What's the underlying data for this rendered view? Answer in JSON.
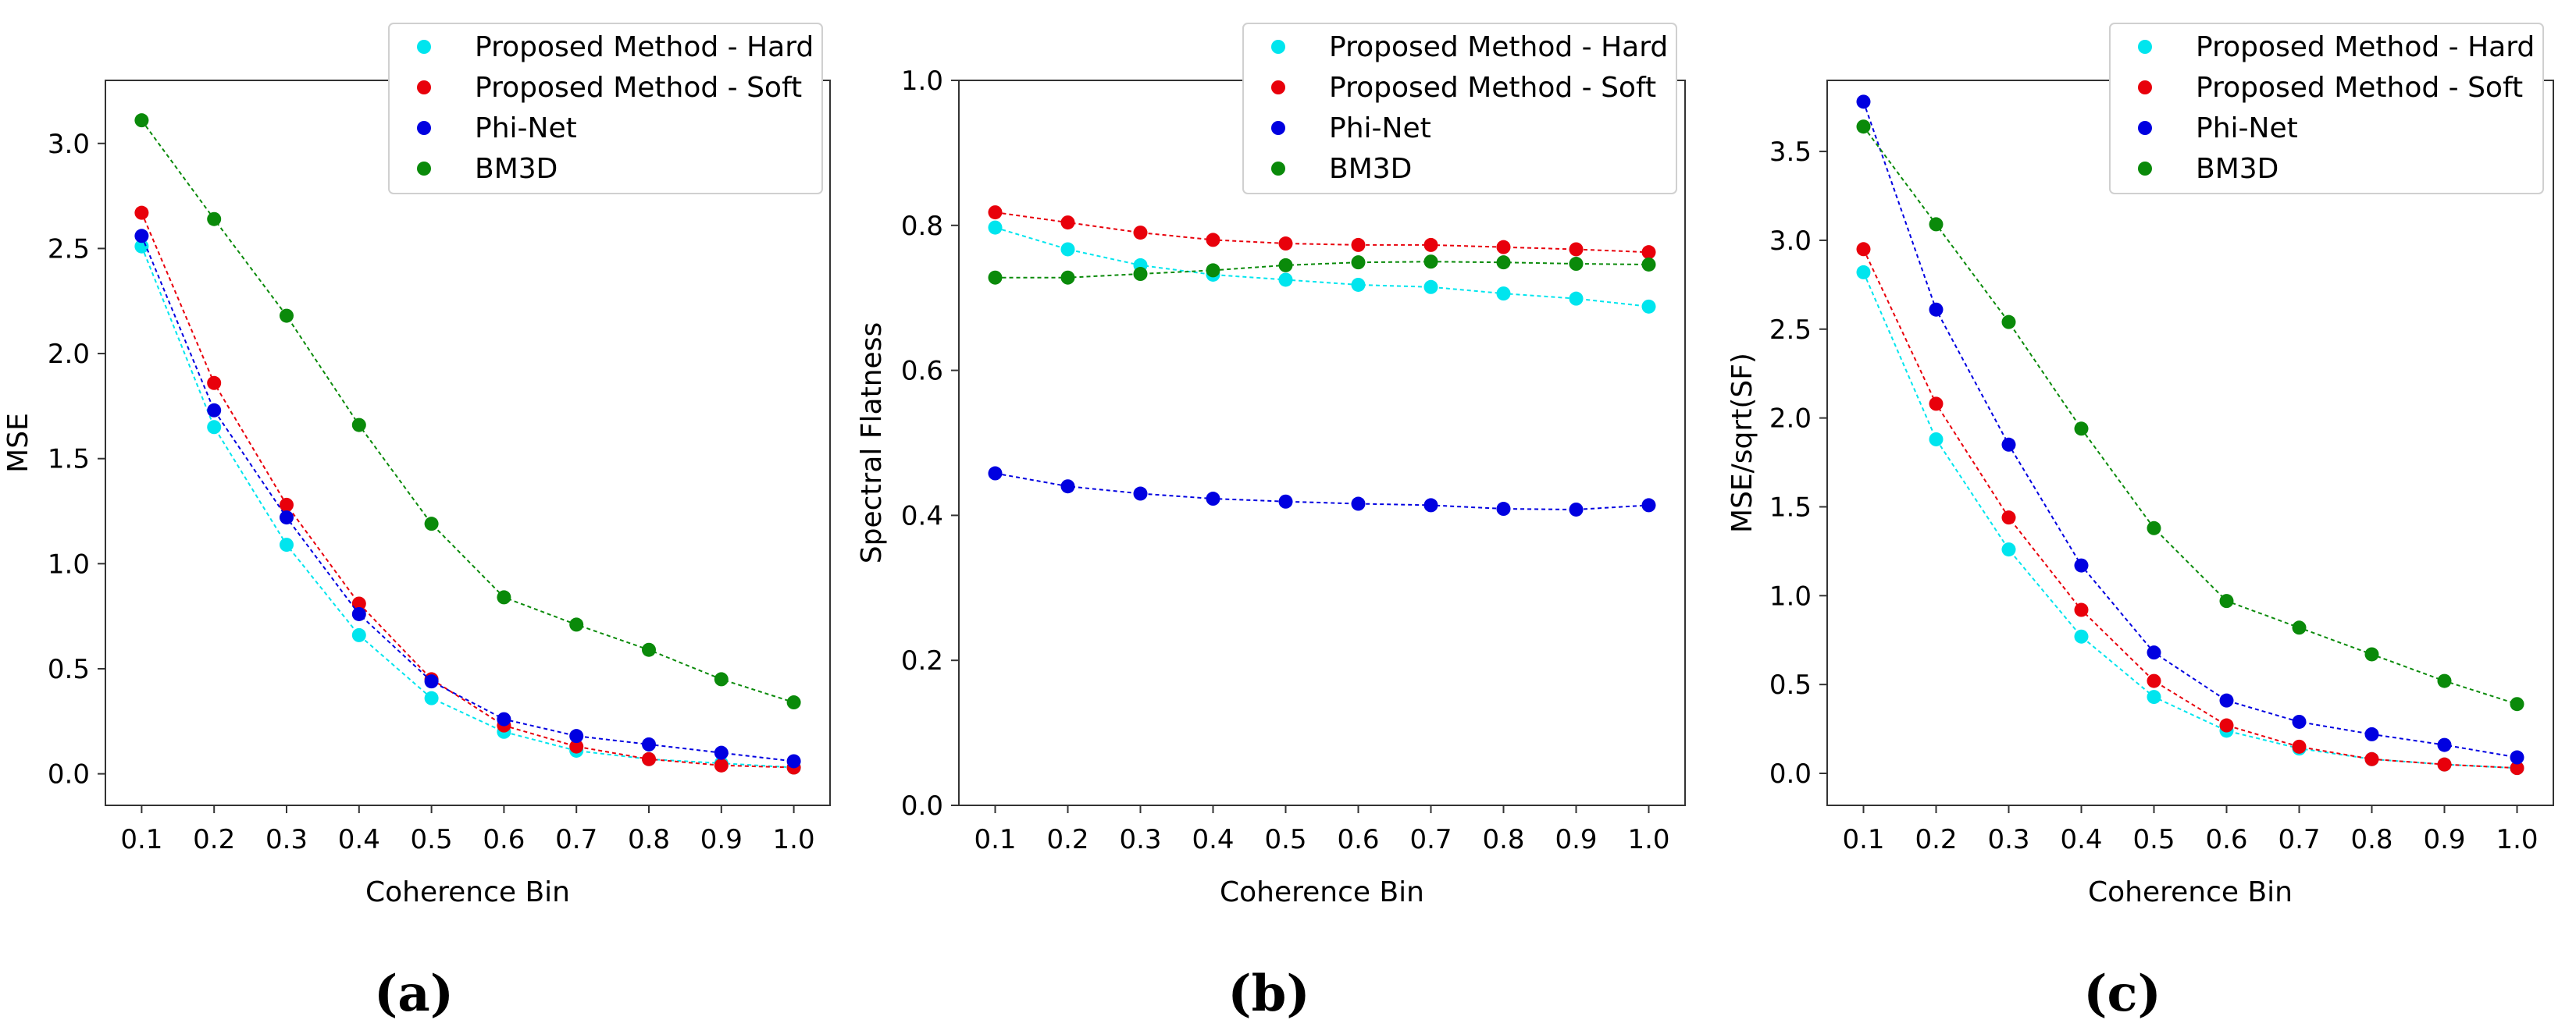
{
  "figure": {
    "panel_labels": [
      "(a)",
      "(b)",
      "(c)"
    ]
  },
  "colors": {
    "Proposed Method - Hard": "#00e5ee",
    "Proposed Method - Soft": "#e8000b",
    "Phi-Net": "#0000e0",
    "BM3D": "#0a8a0a"
  },
  "chart_data": [
    {
      "type": "line",
      "xlabel": "Coherence Bin",
      "ylabel": "MSE",
      "xlim": [
        0.05,
        1.05
      ],
      "ylim": [
        -0.15,
        3.3
      ],
      "xticks": [
        0.1,
        0.2,
        0.3,
        0.4,
        0.5,
        0.6,
        0.7,
        0.8,
        0.9,
        1.0
      ],
      "xtick_labels": [
        "0.1",
        "0.2",
        "0.3",
        "0.4",
        "0.5",
        "0.6",
        "0.7",
        "0.8",
        "0.9",
        "1.0"
      ],
      "yticks": [
        0.0,
        0.5,
        1.0,
        1.5,
        2.0,
        2.5,
        3.0
      ],
      "ytick_labels": [
        "0.0",
        "0.5",
        "1.0",
        "1.5",
        "2.0",
        "2.5",
        "3.0"
      ],
      "legend_position": "top-right",
      "grid": false,
      "x": [
        0.1,
        0.2,
        0.3,
        0.4,
        0.5,
        0.6,
        0.7,
        0.8,
        0.9,
        1.0
      ],
      "series": [
        {
          "name": "Proposed Method - Hard",
          "values": [
            2.51,
            1.65,
            1.09,
            0.66,
            0.36,
            0.2,
            0.11,
            0.07,
            0.05,
            0.03
          ]
        },
        {
          "name": "Proposed Method - Soft",
          "values": [
            2.67,
            1.86,
            1.28,
            0.81,
            0.45,
            0.23,
            0.13,
            0.07,
            0.04,
            0.03
          ]
        },
        {
          "name": "Phi-Net",
          "values": [
            2.56,
            1.73,
            1.22,
            0.76,
            0.44,
            0.26,
            0.18,
            0.14,
            0.1,
            0.06
          ]
        },
        {
          "name": "BM3D",
          "values": [
            3.11,
            2.64,
            2.18,
            1.66,
            1.19,
            0.84,
            0.71,
            0.59,
            0.45,
            0.34
          ]
        }
      ]
    },
    {
      "type": "line",
      "xlabel": "Coherence Bin",
      "ylabel": "Spectral Flatness",
      "xlim": [
        0.05,
        1.05
      ],
      "ylim": [
        0.0,
        1.0
      ],
      "xticks": [
        0.1,
        0.2,
        0.3,
        0.4,
        0.5,
        0.6,
        0.7,
        0.8,
        0.9,
        1.0
      ],
      "xtick_labels": [
        "0.1",
        "0.2",
        "0.3",
        "0.4",
        "0.5",
        "0.6",
        "0.7",
        "0.8",
        "0.9",
        "1.0"
      ],
      "yticks": [
        0.0,
        0.2,
        0.4,
        0.6,
        0.8,
        1.0
      ],
      "ytick_labels": [
        "0.0",
        "0.2",
        "0.4",
        "0.6",
        "0.8",
        "1.0"
      ],
      "legend_position": "top-right",
      "grid": false,
      "x": [
        0.1,
        0.2,
        0.3,
        0.4,
        0.5,
        0.6,
        0.7,
        0.8,
        0.9,
        1.0
      ],
      "series": [
        {
          "name": "Proposed Method - Hard",
          "values": [
            0.797,
            0.767,
            0.745,
            0.732,
            0.725,
            0.718,
            0.715,
            0.706,
            0.699,
            0.688
          ]
        },
        {
          "name": "Proposed Method - Soft",
          "values": [
            0.818,
            0.804,
            0.79,
            0.78,
            0.775,
            0.773,
            0.773,
            0.77,
            0.767,
            0.763
          ]
        },
        {
          "name": "Phi-Net",
          "values": [
            0.458,
            0.44,
            0.43,
            0.423,
            0.419,
            0.416,
            0.414,
            0.409,
            0.408,
            0.414
          ]
        },
        {
          "name": "BM3D",
          "values": [
            0.728,
            0.728,
            0.733,
            0.738,
            0.745,
            0.749,
            0.75,
            0.749,
            0.747,
            0.746
          ]
        }
      ]
    },
    {
      "type": "line",
      "xlabel": "Coherence Bin",
      "ylabel": "MSE/sqrt(SF)",
      "xlim": [
        0.05,
        1.05
      ],
      "ylim": [
        -0.18,
        3.9
      ],
      "xticks": [
        0.1,
        0.2,
        0.3,
        0.4,
        0.5,
        0.6,
        0.7,
        0.8,
        0.9,
        1.0
      ],
      "xtick_labels": [
        "0.1",
        "0.2",
        "0.3",
        "0.4",
        "0.5",
        "0.6",
        "0.7",
        "0.8",
        "0.9",
        "1.0"
      ],
      "yticks": [
        0.0,
        0.5,
        1.0,
        1.5,
        2.0,
        2.5,
        3.0,
        3.5
      ],
      "ytick_labels": [
        "0.0",
        "0.5",
        "1.0",
        "1.5",
        "2.0",
        "2.5",
        "3.0",
        "3.5"
      ],
      "legend_position": "top-right",
      "grid": false,
      "x": [
        0.1,
        0.2,
        0.3,
        0.4,
        0.5,
        0.6,
        0.7,
        0.8,
        0.9,
        1.0
      ],
      "series": [
        {
          "name": "Proposed Method - Hard",
          "values": [
            2.82,
            1.88,
            1.26,
            0.77,
            0.43,
            0.24,
            0.14,
            0.08,
            0.05,
            0.03
          ]
        },
        {
          "name": "Proposed Method - Soft",
          "values": [
            2.95,
            2.08,
            1.44,
            0.92,
            0.52,
            0.27,
            0.15,
            0.08,
            0.05,
            0.03
          ]
        },
        {
          "name": "Phi-Net",
          "values": [
            3.78,
            2.61,
            1.85,
            1.17,
            0.68,
            0.41,
            0.29,
            0.22,
            0.16,
            0.09
          ]
        },
        {
          "name": "BM3D",
          "values": [
            3.64,
            3.09,
            2.54,
            1.94,
            1.38,
            0.97,
            0.82,
            0.67,
            0.52,
            0.39
          ]
        }
      ]
    }
  ]
}
